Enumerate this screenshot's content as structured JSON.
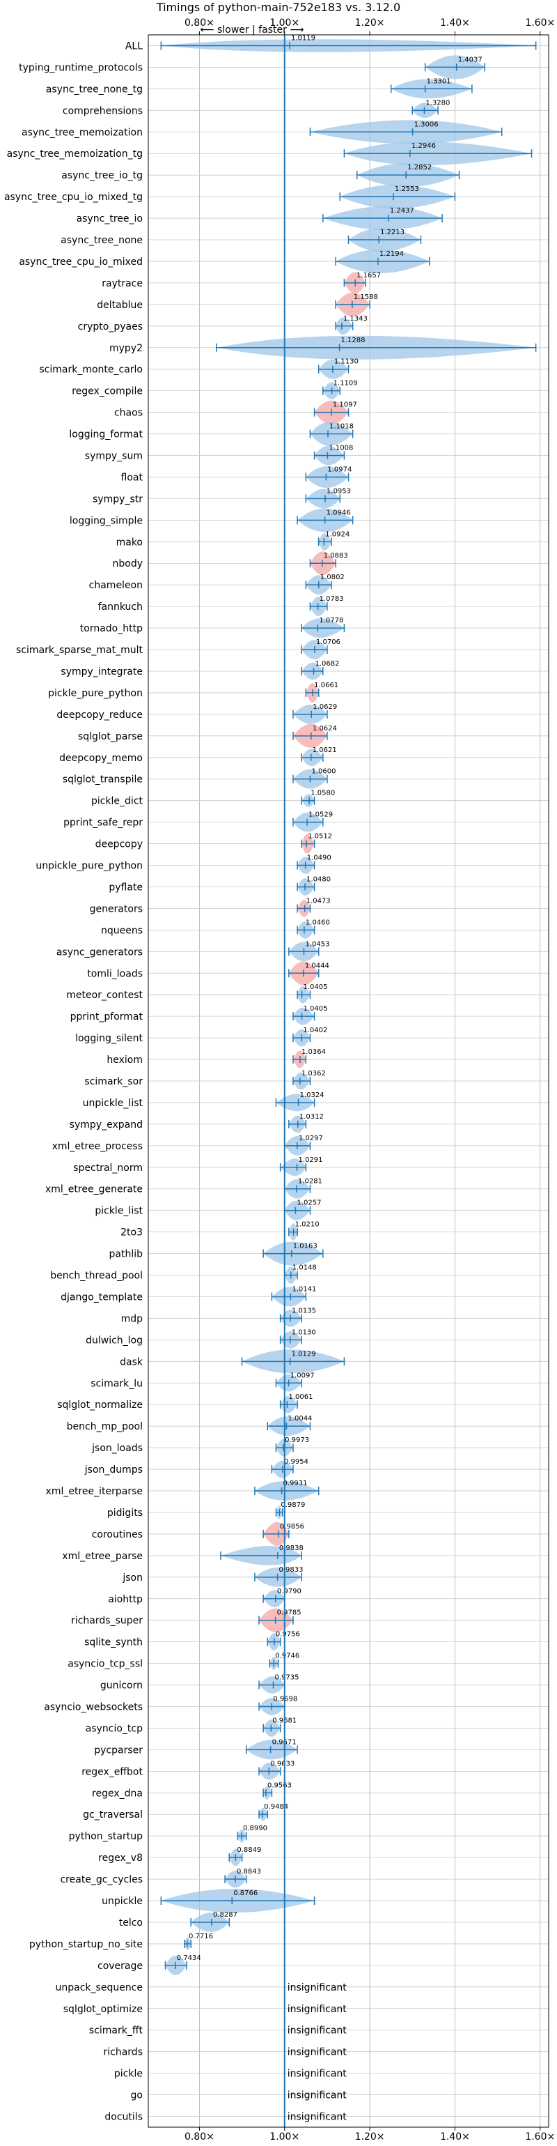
{
  "chart_data": {
    "type": "violin",
    "title": "Timings of python-main-752e183 vs. 3.12.0",
    "direction_label": "⟵ slower | faster ⟶",
    "xlim": [
      0.68,
      1.62
    ],
    "xticks": [
      0.8,
      1.0,
      1.2,
      1.4,
      1.6
    ],
    "xtick_labels": [
      "0.80×",
      "1.00×",
      "1.20×",
      "1.40×",
      "1.60×"
    ],
    "reference_line": 1.0,
    "grid": true,
    "colors": {
      "normal": "#9fc5e8",
      "highlight": "#f4a6a6",
      "line": "#1f77b4"
    },
    "rows": [
      {
        "name": "ALL",
        "value": 1.0119,
        "lo": 0.71,
        "hi": 1.59,
        "w": 0.3,
        "hl": false
      },
      {
        "name": "typing_runtime_protocols",
        "value": 1.4037,
        "lo": 1.33,
        "hi": 1.47,
        "w": 0.55,
        "hl": false
      },
      {
        "name": "async_tree_none_tg",
        "value": 1.3301,
        "lo": 1.25,
        "hi": 1.44,
        "w": 0.45,
        "hl": false
      },
      {
        "name": "comprehensions",
        "value": 1.328,
        "lo": 1.3,
        "hi": 1.36,
        "w": 0.35,
        "hl": false
      },
      {
        "name": "async_tree_memoization",
        "value": 1.3006,
        "lo": 1.06,
        "hi": 1.51,
        "w": 0.55,
        "hl": false
      },
      {
        "name": "async_tree_memoization_tg",
        "value": 1.2946,
        "lo": 1.14,
        "hi": 1.58,
        "w": 0.55,
        "hl": false
      },
      {
        "name": "async_tree_io_tg",
        "value": 1.2852,
        "lo": 1.17,
        "hi": 1.41,
        "w": 0.55,
        "hl": false
      },
      {
        "name": "async_tree_cpu_io_mixed_tg",
        "value": 1.2553,
        "lo": 1.13,
        "hi": 1.4,
        "w": 0.55,
        "hl": false
      },
      {
        "name": "async_tree_io",
        "value": 1.2437,
        "lo": 1.09,
        "hi": 1.37,
        "w": 0.55,
        "hl": false
      },
      {
        "name": "async_tree_none",
        "value": 1.2213,
        "lo": 1.15,
        "hi": 1.32,
        "w": 0.55,
        "hl": false
      },
      {
        "name": "async_tree_cpu_io_mixed",
        "value": 1.2194,
        "lo": 1.12,
        "hi": 1.34,
        "w": 0.55,
        "hl": false
      },
      {
        "name": "raytrace",
        "value": 1.1657,
        "lo": 1.14,
        "hi": 1.19,
        "w": 0.5,
        "hl": true
      },
      {
        "name": "deltablue",
        "value": 1.1588,
        "lo": 1.12,
        "hi": 1.2,
        "w": 0.55,
        "hl": true
      },
      {
        "name": "crypto_pyaes",
        "value": 1.1343,
        "lo": 1.12,
        "hi": 1.16,
        "w": 0.4,
        "hl": false
      },
      {
        "name": "mypy2",
        "value": 1.1288,
        "lo": 0.84,
        "hi": 1.59,
        "w": 0.55,
        "hl": false
      },
      {
        "name": "scimark_monte_carlo",
        "value": 1.113,
        "lo": 1.08,
        "hi": 1.15,
        "w": 0.45,
        "hl": false
      },
      {
        "name": "regex_compile",
        "value": 1.1109,
        "lo": 1.09,
        "hi": 1.13,
        "w": 0.4,
        "hl": false
      },
      {
        "name": "chaos",
        "value": 1.1097,
        "lo": 1.07,
        "hi": 1.15,
        "w": 0.55,
        "hl": true
      },
      {
        "name": "logging_format",
        "value": 1.1018,
        "lo": 1.06,
        "hi": 1.16,
        "w": 0.55,
        "hl": false
      },
      {
        "name": "sympy_sum",
        "value": 1.1008,
        "lo": 1.07,
        "hi": 1.14,
        "w": 0.45,
        "hl": false
      },
      {
        "name": "float",
        "value": 1.0974,
        "lo": 1.05,
        "hi": 1.15,
        "w": 0.5,
        "hl": false
      },
      {
        "name": "sympy_str",
        "value": 1.0953,
        "lo": 1.05,
        "hi": 1.13,
        "w": 0.45,
        "hl": false
      },
      {
        "name": "logging_simple",
        "value": 1.0946,
        "lo": 1.03,
        "hi": 1.16,
        "w": 0.55,
        "hl": false
      },
      {
        "name": "mako",
        "value": 1.0924,
        "lo": 1.08,
        "hi": 1.11,
        "w": 0.4,
        "hl": false
      },
      {
        "name": "nbody",
        "value": 1.0883,
        "lo": 1.06,
        "hi": 1.12,
        "w": 0.55,
        "hl": true
      },
      {
        "name": "chameleon",
        "value": 1.0802,
        "lo": 1.05,
        "hi": 1.11,
        "w": 0.45,
        "hl": false
      },
      {
        "name": "fannkuch",
        "value": 1.0783,
        "lo": 1.06,
        "hi": 1.1,
        "w": 0.45,
        "hl": false
      },
      {
        "name": "tornado_http",
        "value": 1.0778,
        "lo": 1.04,
        "hi": 1.14,
        "w": 0.45,
        "hl": false
      },
      {
        "name": "scimark_sparse_mat_mult",
        "value": 1.0706,
        "lo": 1.04,
        "hi": 1.1,
        "w": 0.45,
        "hl": false
      },
      {
        "name": "sympy_integrate",
        "value": 1.0682,
        "lo": 1.04,
        "hi": 1.09,
        "w": 0.4,
        "hl": false
      },
      {
        "name": "pickle_pure_python",
        "value": 1.0661,
        "lo": 1.05,
        "hi": 1.08,
        "w": 0.45,
        "hl": true
      },
      {
        "name": "deepcopy_reduce",
        "value": 1.0629,
        "lo": 1.02,
        "hi": 1.1,
        "w": 0.45,
        "hl": false
      },
      {
        "name": "sqlglot_parse",
        "value": 1.0624,
        "lo": 1.02,
        "hi": 1.1,
        "w": 0.55,
        "hl": true
      },
      {
        "name": "deepcopy_memo",
        "value": 1.0621,
        "lo": 1.04,
        "hi": 1.09,
        "w": 0.4,
        "hl": false
      },
      {
        "name": "sqlglot_transpile",
        "value": 1.06,
        "lo": 1.02,
        "hi": 1.1,
        "w": 0.45,
        "hl": false
      },
      {
        "name": "pickle_dict",
        "value": 1.058,
        "lo": 1.04,
        "hi": 1.07,
        "w": 0.3,
        "hl": false
      },
      {
        "name": "pprint_safe_repr",
        "value": 1.0529,
        "lo": 1.02,
        "hi": 1.09,
        "w": 0.45,
        "hl": false
      },
      {
        "name": "deepcopy",
        "value": 1.0512,
        "lo": 1.04,
        "hi": 1.07,
        "w": 0.45,
        "hl": true
      },
      {
        "name": "unpickle_pure_python",
        "value": 1.049,
        "lo": 1.03,
        "hi": 1.07,
        "w": 0.4,
        "hl": false
      },
      {
        "name": "pyflate",
        "value": 1.048,
        "lo": 1.03,
        "hi": 1.07,
        "w": 0.4,
        "hl": false
      },
      {
        "name": "generators",
        "value": 1.0473,
        "lo": 1.03,
        "hi": 1.06,
        "w": 0.4,
        "hl": true
      },
      {
        "name": "nqueens",
        "value": 1.046,
        "lo": 1.03,
        "hi": 1.07,
        "w": 0.4,
        "hl": false
      },
      {
        "name": "async_generators",
        "value": 1.0453,
        "lo": 1.01,
        "hi": 1.08,
        "w": 0.45,
        "hl": false
      },
      {
        "name": "tomli_loads",
        "value": 1.0444,
        "lo": 1.01,
        "hi": 1.08,
        "w": 0.55,
        "hl": true
      },
      {
        "name": "meteor_contest",
        "value": 1.0405,
        "lo": 1.03,
        "hi": 1.06,
        "w": 0.4,
        "hl": false
      },
      {
        "name": "pprint_pformat",
        "value": 1.0405,
        "lo": 1.02,
        "hi": 1.07,
        "w": 0.4,
        "hl": false
      },
      {
        "name": "logging_silent",
        "value": 1.0402,
        "lo": 1.02,
        "hi": 1.06,
        "w": 0.4,
        "hl": false
      },
      {
        "name": "hexiom",
        "value": 1.0364,
        "lo": 1.02,
        "hi": 1.05,
        "w": 0.4,
        "hl": true
      },
      {
        "name": "scimark_sor",
        "value": 1.0362,
        "lo": 1.02,
        "hi": 1.06,
        "w": 0.4,
        "hl": false
      },
      {
        "name": "unpickle_list",
        "value": 1.0324,
        "lo": 0.98,
        "hi": 1.07,
        "w": 0.4,
        "hl": false
      },
      {
        "name": "sympy_expand",
        "value": 1.0312,
        "lo": 1.01,
        "hi": 1.05,
        "w": 0.4,
        "hl": false
      },
      {
        "name": "xml_etree_process",
        "value": 1.0297,
        "lo": 1.0,
        "hi": 1.06,
        "w": 0.45,
        "hl": false
      },
      {
        "name": "spectral_norm",
        "value": 1.0291,
        "lo": 0.99,
        "hi": 1.05,
        "w": 0.4,
        "hl": false
      },
      {
        "name": "xml_etree_generate",
        "value": 1.0281,
        "lo": 1.0,
        "hi": 1.06,
        "w": 0.45,
        "hl": false
      },
      {
        "name": "pickle_list",
        "value": 1.0257,
        "lo": 1.0,
        "hi": 1.06,
        "w": 0.45,
        "hl": false
      },
      {
        "name": "2to3",
        "value": 1.021,
        "lo": 1.01,
        "hi": 1.03,
        "w": 0.4,
        "hl": false
      },
      {
        "name": "pathlib",
        "value": 1.0163,
        "lo": 0.95,
        "hi": 1.09,
        "w": 0.55,
        "hl": false
      },
      {
        "name": "bench_thread_pool",
        "value": 1.0148,
        "lo": 1.0,
        "hi": 1.03,
        "w": 0.4,
        "hl": false
      },
      {
        "name": "django_template",
        "value": 1.0141,
        "lo": 0.97,
        "hi": 1.05,
        "w": 0.45,
        "hl": false
      },
      {
        "name": "mdp",
        "value": 1.0135,
        "lo": 0.99,
        "hi": 1.04,
        "w": 0.4,
        "hl": false
      },
      {
        "name": "dulwich_log",
        "value": 1.013,
        "lo": 0.99,
        "hi": 1.04,
        "w": 0.4,
        "hl": false
      },
      {
        "name": "dask",
        "value": 1.0129,
        "lo": 0.9,
        "hi": 1.14,
        "w": 0.55,
        "hl": false
      },
      {
        "name": "scimark_lu",
        "value": 1.0097,
        "lo": 0.98,
        "hi": 1.04,
        "w": 0.4,
        "hl": false
      },
      {
        "name": "sqlglot_normalize",
        "value": 1.0061,
        "lo": 0.99,
        "hi": 1.03,
        "w": 0.4,
        "hl": false
      },
      {
        "name": "bench_mp_pool",
        "value": 1.0044,
        "lo": 0.96,
        "hi": 1.06,
        "w": 0.45,
        "hl": false
      },
      {
        "name": "json_loads",
        "value": 0.9973,
        "lo": 0.98,
        "hi": 1.02,
        "w": 0.4,
        "hl": false
      },
      {
        "name": "json_dumps",
        "value": 0.9954,
        "lo": 0.97,
        "hi": 1.02,
        "w": 0.4,
        "hl": false
      },
      {
        "name": "xml_etree_iterparse",
        "value": 0.9931,
        "lo": 0.93,
        "hi": 1.08,
        "w": 0.45,
        "hl": false
      },
      {
        "name": "pidigits",
        "value": 0.9879,
        "lo": 0.98,
        "hi": 0.995,
        "w": 0.3,
        "hl": false
      },
      {
        "name": "coroutines",
        "value": 0.9856,
        "lo": 0.95,
        "hi": 1.01,
        "w": 0.55,
        "hl": true
      },
      {
        "name": "xml_etree_parse",
        "value": 0.9838,
        "lo": 0.85,
        "hi": 1.04,
        "w": 0.45,
        "hl": false
      },
      {
        "name": "json",
        "value": 0.9833,
        "lo": 0.93,
        "hi": 1.04,
        "w": 0.45,
        "hl": false
      },
      {
        "name": "aiohttp",
        "value": 0.979,
        "lo": 0.95,
        "hi": 1.0,
        "w": 0.4,
        "hl": false
      },
      {
        "name": "richards_super",
        "value": 0.9785,
        "lo": 0.94,
        "hi": 1.02,
        "w": 0.55,
        "hl": true
      },
      {
        "name": "sqlite_synth",
        "value": 0.9756,
        "lo": 0.96,
        "hi": 0.99,
        "w": 0.4,
        "hl": false
      },
      {
        "name": "asyncio_tcp_ssl",
        "value": 0.9746,
        "lo": 0.965,
        "hi": 0.985,
        "w": 0.3,
        "hl": false
      },
      {
        "name": "gunicorn",
        "value": 0.9735,
        "lo": 0.94,
        "hi": 1.0,
        "w": 0.4,
        "hl": false
      },
      {
        "name": "asyncio_websockets",
        "value": 0.9698,
        "lo": 0.94,
        "hi": 1.0,
        "w": 0.4,
        "hl": false
      },
      {
        "name": "asyncio_tcp",
        "value": 0.9681,
        "lo": 0.95,
        "hi": 0.99,
        "w": 0.4,
        "hl": false
      },
      {
        "name": "pycparser",
        "value": 0.9671,
        "lo": 0.91,
        "hi": 1.03,
        "w": 0.45,
        "hl": false
      },
      {
        "name": "regex_effbot",
        "value": 0.9633,
        "lo": 0.94,
        "hi": 0.99,
        "w": 0.4,
        "hl": false
      },
      {
        "name": "regex_dna",
        "value": 0.9563,
        "lo": 0.95,
        "hi": 0.97,
        "w": 0.3,
        "hl": false
      },
      {
        "name": "gc_traversal",
        "value": 0.9484,
        "lo": 0.94,
        "hi": 0.96,
        "w": 0.3,
        "hl": false
      },
      {
        "name": "python_startup",
        "value": 0.899,
        "lo": 0.89,
        "hi": 0.91,
        "w": 0.3,
        "hl": false
      },
      {
        "name": "regex_v8",
        "value": 0.8849,
        "lo": 0.87,
        "hi": 0.9,
        "w": 0.4,
        "hl": false
      },
      {
        "name": "create_gc_cycles",
        "value": 0.8843,
        "lo": 0.86,
        "hi": 0.91,
        "w": 0.4,
        "hl": false
      },
      {
        "name": "unpickle",
        "value": 0.8766,
        "lo": 0.71,
        "hi": 1.07,
        "w": 0.55,
        "hl": false
      },
      {
        "name": "telco",
        "value": 0.8287,
        "lo": 0.78,
        "hi": 0.87,
        "w": 0.45,
        "hl": false
      },
      {
        "name": "python_startup_no_site",
        "value": 0.7716,
        "lo": 0.765,
        "hi": 0.78,
        "w": 0.3,
        "hl": false
      },
      {
        "name": "coverage",
        "value": 0.7434,
        "lo": 0.72,
        "hi": 0.77,
        "w": 0.45,
        "hl": false
      },
      {
        "name": "unpack_sequence",
        "insignificant": true
      },
      {
        "name": "sqlglot_optimize",
        "insignificant": true
      },
      {
        "name": "scimark_fft",
        "insignificant": true
      },
      {
        "name": "richards",
        "insignificant": true
      },
      {
        "name": "pickle",
        "insignificant": true
      },
      {
        "name": "go",
        "insignificant": true
      },
      {
        "name": "docutils",
        "insignificant": true
      }
    ],
    "insignificant_label": "insignificant"
  }
}
